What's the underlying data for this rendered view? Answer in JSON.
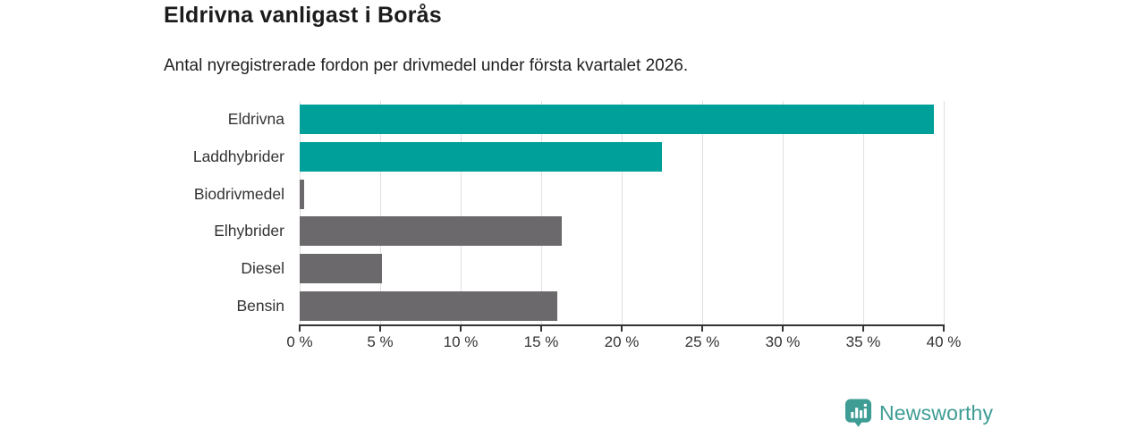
{
  "chart_data": {
    "type": "bar",
    "orientation": "horizontal",
    "title": "Eldrivna vanligast i Borås",
    "subtitle": "Antal nyregistrerade fordon per drivmedel under första kvartalet 2026.",
    "categories": [
      "Eldrivna",
      "Laddhybrider",
      "Biodrivmedel",
      "Elhybrider",
      "Diesel",
      "Bensin"
    ],
    "values": [
      39.4,
      22.5,
      0.3,
      16.3,
      5.1,
      16.0
    ],
    "unit": "%",
    "xlim": [
      0,
      40
    ],
    "xticks": [
      0,
      5,
      10,
      15,
      20,
      25,
      30,
      35,
      40
    ],
    "xtick_suffix": " %",
    "bar_colors": [
      "#00a09a",
      "#00a09a",
      "#6c696d",
      "#6c696d",
      "#6c696d",
      "#6c696d"
    ],
    "highlight_color": "#00a09a",
    "default_color": "#6c696d",
    "grid": true,
    "gridline_color": "#e0e0e0",
    "axis_color": "#333333",
    "legend": "none"
  },
  "branding": {
    "wordmark": "Newsworthy",
    "logo_color": "#3d9c94",
    "logo_icon": "bar-chart-pin"
  }
}
